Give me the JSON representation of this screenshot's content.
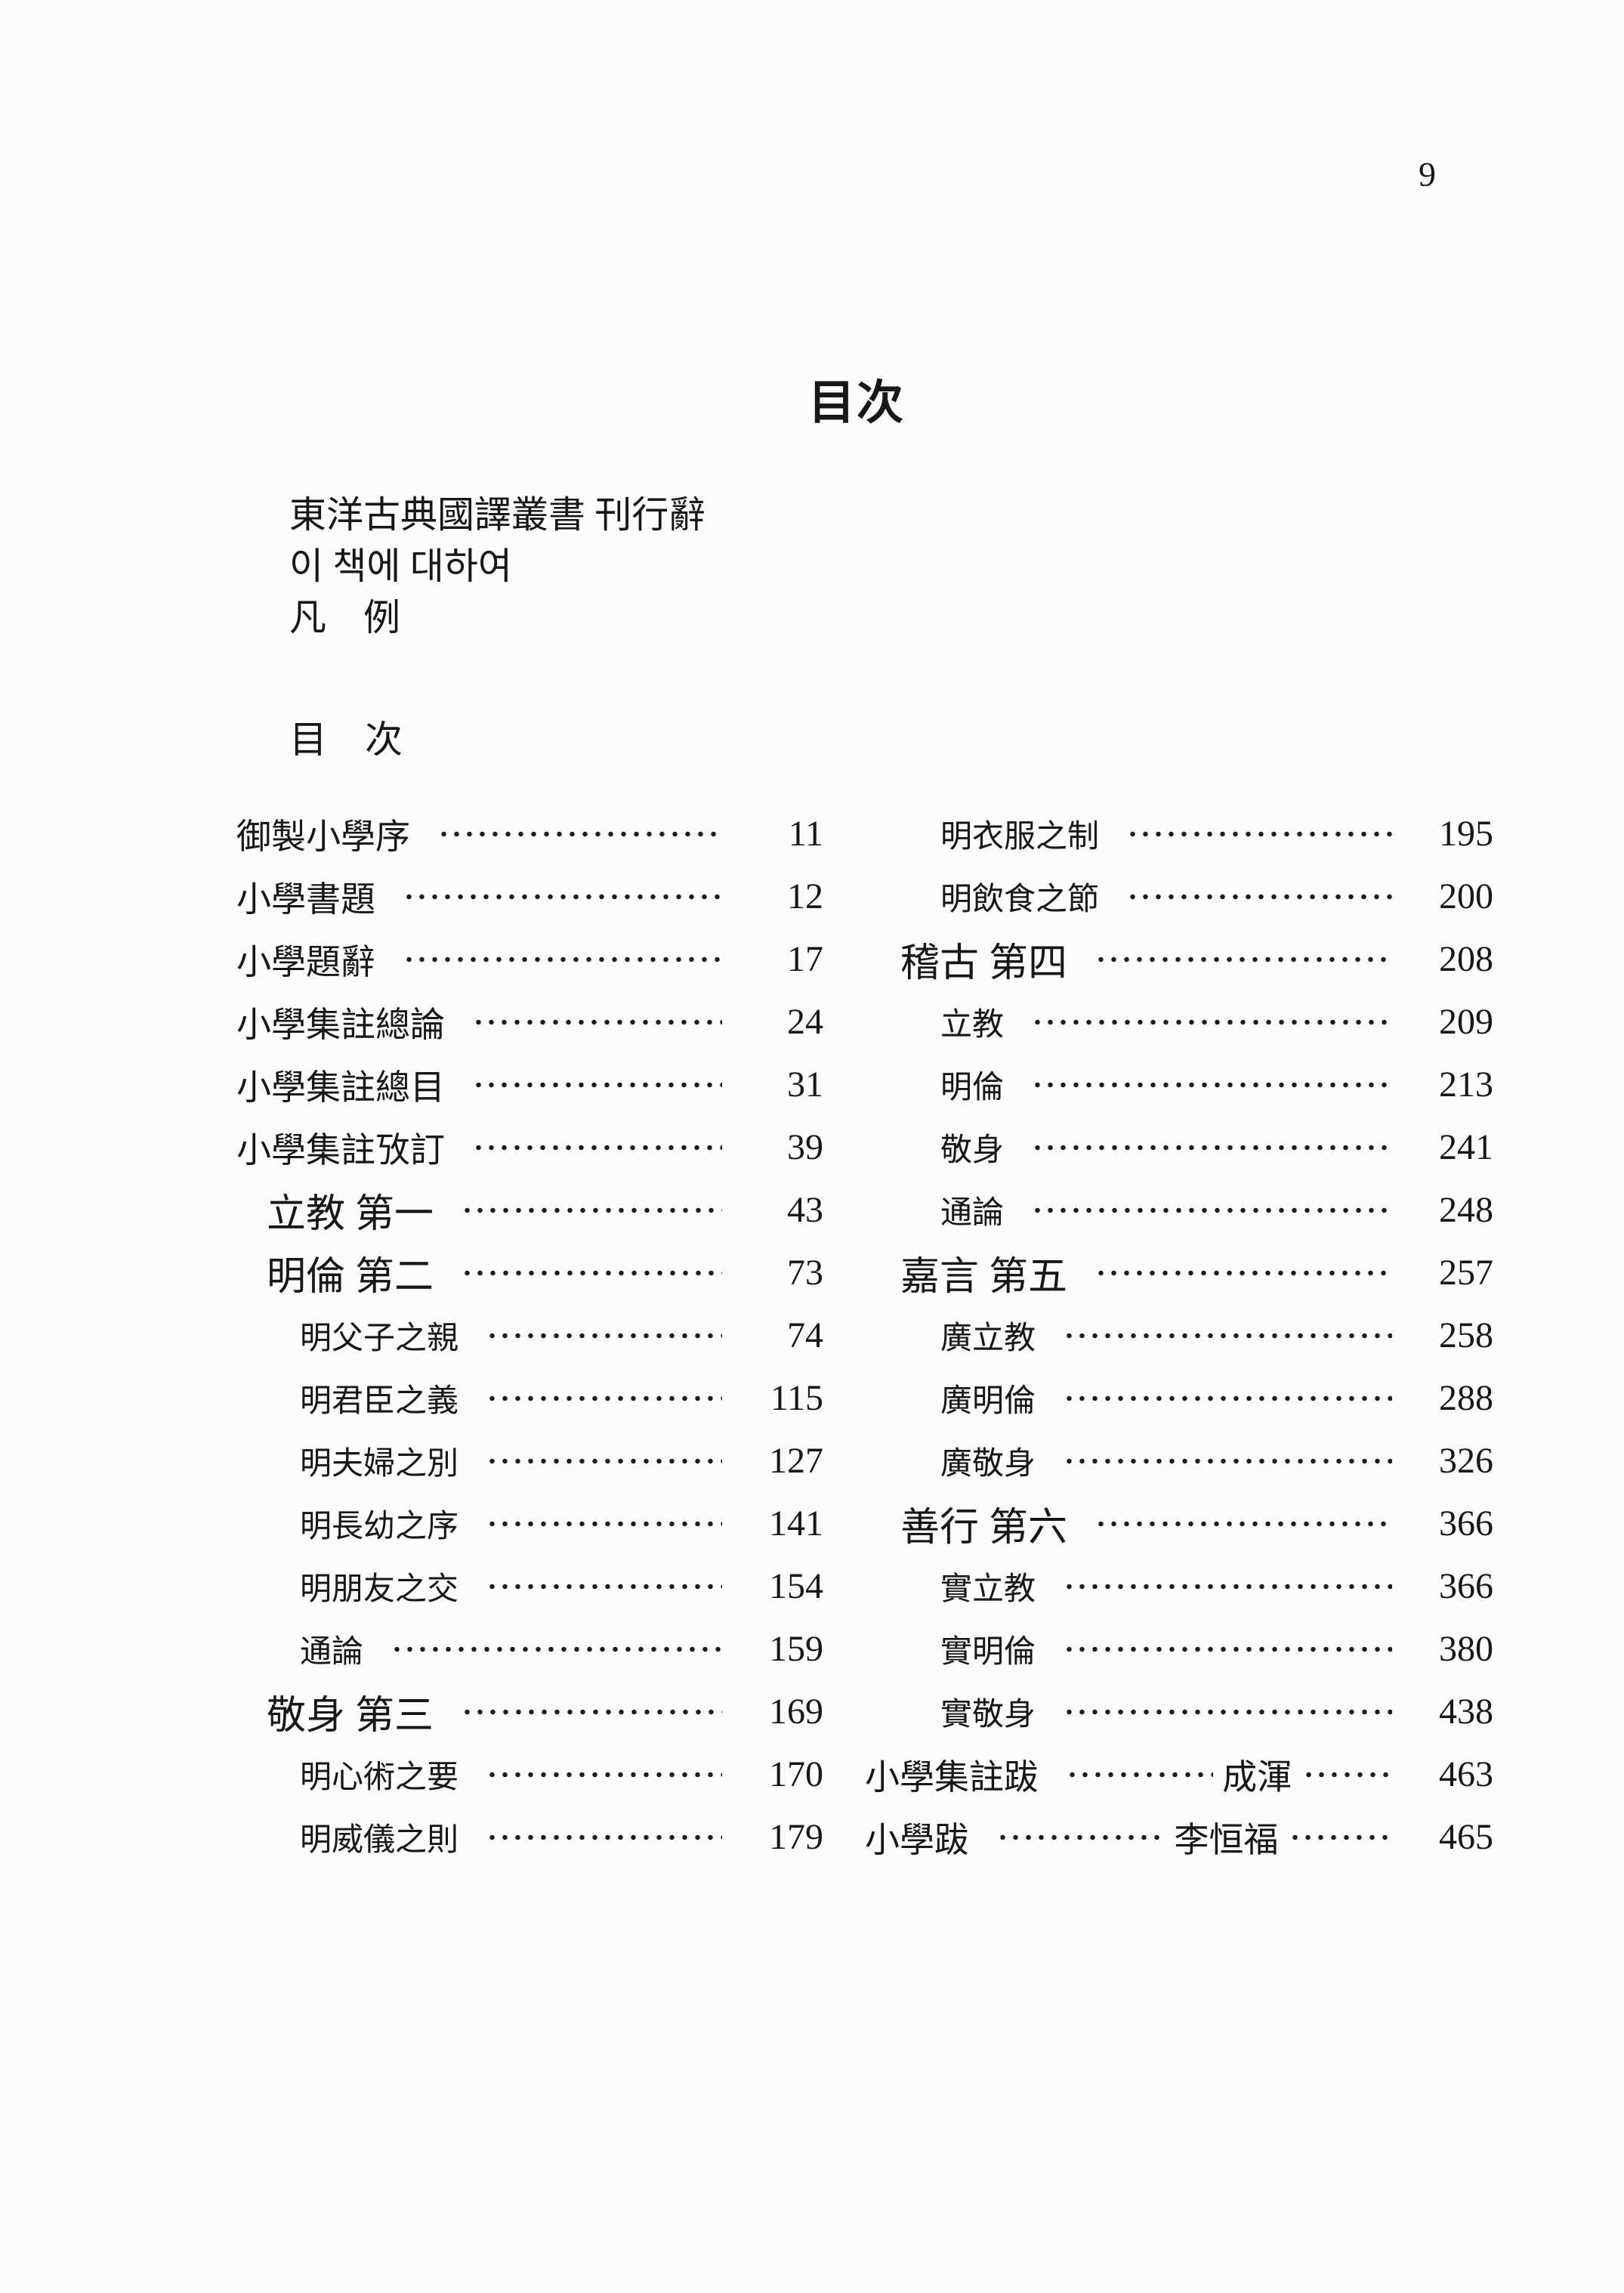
{
  "page": {
    "number": "9",
    "title": "目次",
    "background_color": "#fcfcfc",
    "text_color": "#171717"
  },
  "front_matter": {
    "lines": [
      "東洋古典國譯叢書 刊行辭",
      "이 책에 대하여",
      "凡　例"
    ],
    "section_heading": "目　次"
  },
  "toc": {
    "left_column": [
      {
        "label": "御製小學序",
        "page": "11",
        "level": 0
      },
      {
        "label": "小學書題",
        "page": "12",
        "level": 0
      },
      {
        "label": "小學題辭",
        "page": "17",
        "level": 0
      },
      {
        "label": "小學集註總論",
        "page": "24",
        "level": 0
      },
      {
        "label": "小學集註總目",
        "page": "31",
        "level": 0
      },
      {
        "label": "小學集註攷訂",
        "page": "39",
        "level": 0
      },
      {
        "label": "立教 第一",
        "page": "43",
        "level": 1
      },
      {
        "label": "明倫 第二",
        "page": "73",
        "level": 1
      },
      {
        "label": "明父子之親",
        "page": "74",
        "level": 2
      },
      {
        "label": "明君臣之義",
        "page": "115",
        "level": 2
      },
      {
        "label": "明夫婦之別",
        "page": "127",
        "level": 2
      },
      {
        "label": "明長幼之序",
        "page": "141",
        "level": 2
      },
      {
        "label": "明朋友之交",
        "page": "154",
        "level": 2
      },
      {
        "label": "通論",
        "page": "159",
        "level": 2
      },
      {
        "label": "敬身 第三",
        "page": "169",
        "level": 1
      },
      {
        "label": "明心術之要",
        "page": "170",
        "level": 2
      },
      {
        "label": "明威儀之則",
        "page": "179",
        "level": 2
      }
    ],
    "right_column": [
      {
        "label": "明衣服之制",
        "page": "195",
        "level": 2
      },
      {
        "label": "明飲食之節",
        "page": "200",
        "level": 2
      },
      {
        "label": "稽古 第四",
        "page": "208",
        "level": 1
      },
      {
        "label": "立教",
        "page": "209",
        "level": 2
      },
      {
        "label": "明倫",
        "page": "213",
        "level": 2
      },
      {
        "label": "敬身",
        "page": "241",
        "level": 2
      },
      {
        "label": "通論",
        "page": "248",
        "level": 2
      },
      {
        "label": "嘉言 第五",
        "page": "257",
        "level": 1
      },
      {
        "label": "廣立教",
        "page": "258",
        "level": 2
      },
      {
        "label": "廣明倫",
        "page": "288",
        "level": 2
      },
      {
        "label": "廣敬身",
        "page": "326",
        "level": 2
      },
      {
        "label": "善行 第六",
        "page": "366",
        "level": 1
      },
      {
        "label": "實立教",
        "page": "366",
        "level": 2
      },
      {
        "label": "實明倫",
        "page": "380",
        "level": 2
      },
      {
        "label": "實敬身",
        "page": "438",
        "level": 2
      },
      {
        "label": "小學集註跋",
        "author": "成渾",
        "page": "463",
        "level": 0
      },
      {
        "label": "小學跋",
        "author": "李恒福",
        "page": "465",
        "level": 0
      }
    ]
  }
}
